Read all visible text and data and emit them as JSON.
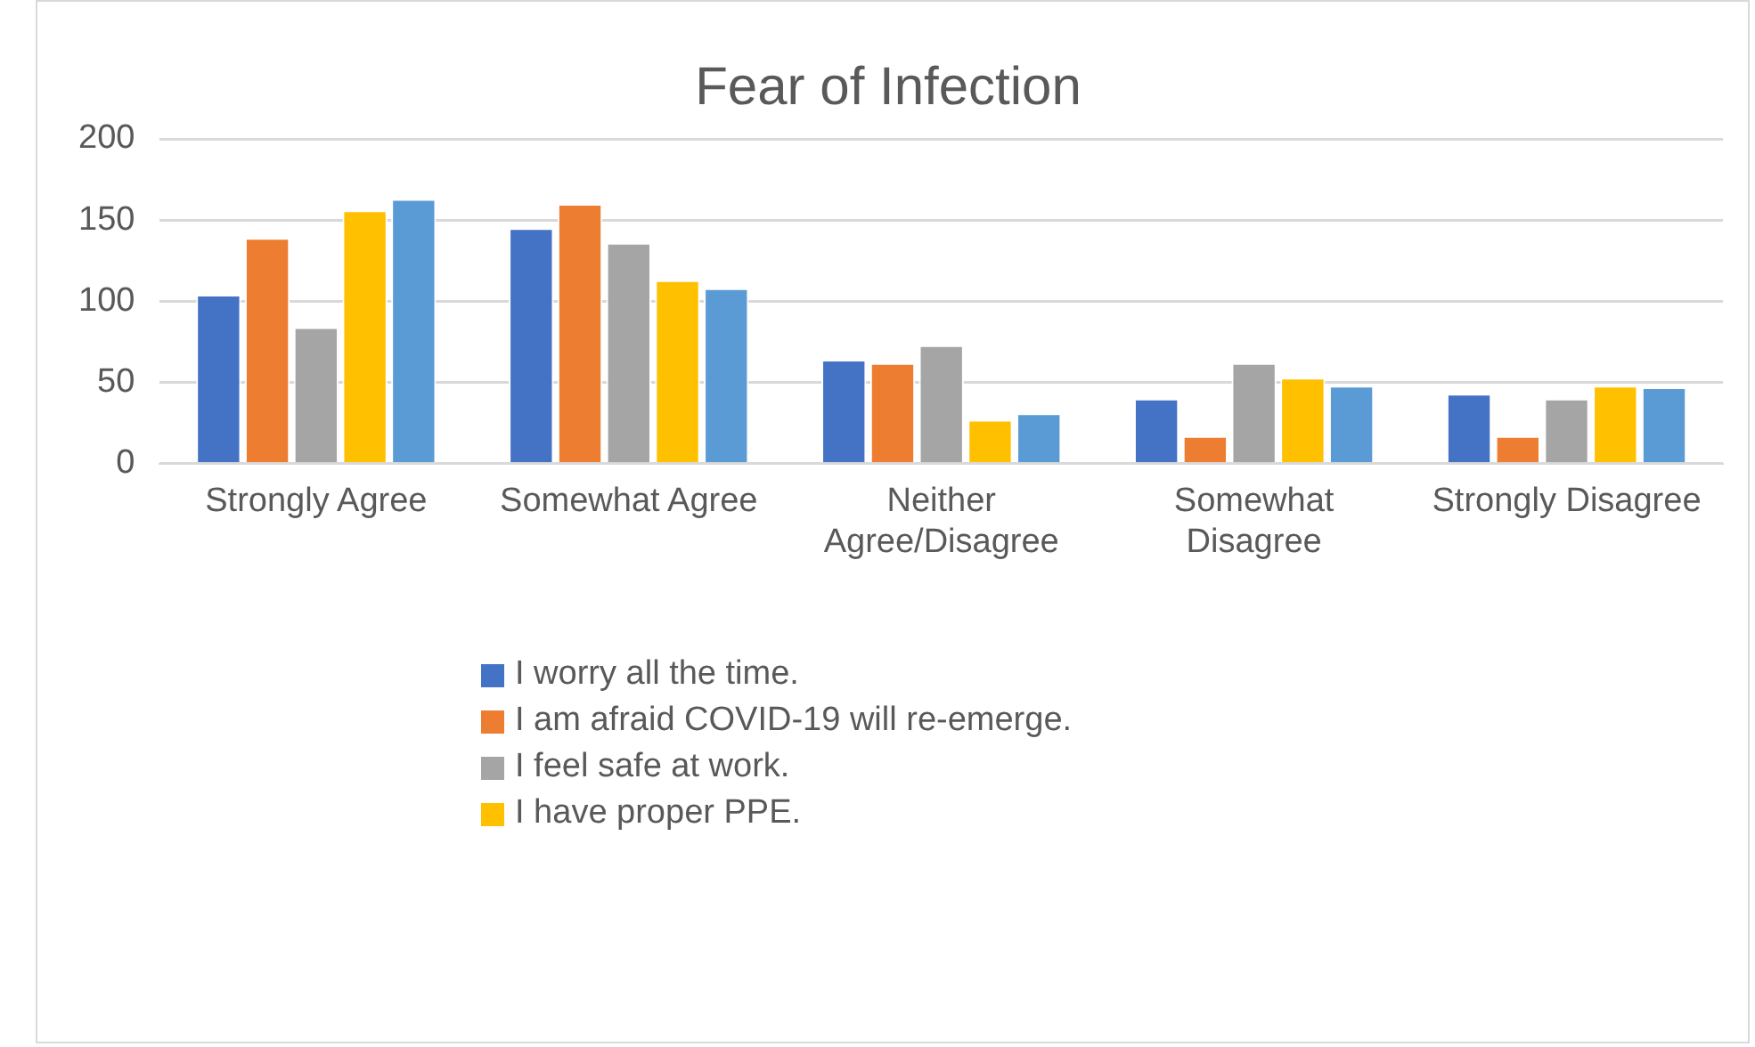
{
  "chart_data": {
    "type": "bar",
    "title": "Fear of Infection",
    "categories": [
      "Strongly Agree",
      "Somewhat Agree",
      "Neither Agree/Disagree",
      "Somewhat Disagree",
      "Strongly Disagree"
    ],
    "series": [
      {
        "name": "I worry all the time.",
        "color": "#4472c4",
        "values": [
          104,
          145,
          64,
          40,
          43
        ]
      },
      {
        "name": "I am afraid COVID-19 will re-emerge.",
        "color": "#ed7d31",
        "values": [
          139,
          160,
          62,
          17,
          17
        ]
      },
      {
        "name": "I feel safe at work.",
        "color": "#a5a5a5",
        "values": [
          84,
          136,
          73,
          62,
          40
        ]
      },
      {
        "name": "I have proper PPE.",
        "color": "#ffc000",
        "values": [
          156,
          113,
          27,
          53,
          48
        ]
      },
      {
        "color": "#5b9bd5",
        "values": [
          163,
          108,
          31,
          48,
          47
        ]
      }
    ],
    "ylim": [
      0,
      200
    ],
    "yticks": [
      0,
      50,
      100,
      150,
      200
    ],
    "grid": "y",
    "legend": "bottom"
  }
}
